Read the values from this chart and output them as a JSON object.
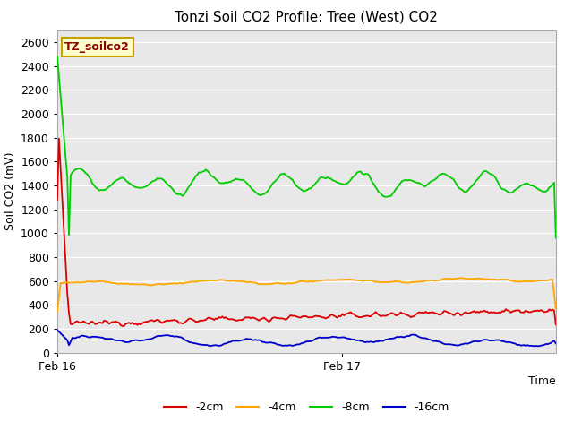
{
  "title": "Tonzi Soil CO2 Profile: Tree (West) CO2",
  "xlabel": "Time",
  "ylabel": "Soil CO2 (mV)",
  "ylim": [
    0,
    2700
  ],
  "yticks": [
    0,
    200,
    400,
    600,
    800,
    1000,
    1200,
    1400,
    1600,
    1800,
    2000,
    2200,
    2400,
    2600
  ],
  "watermark_text": "TZ_soilco2",
  "watermark_bg": "#ffffcc",
  "watermark_fg": "#8b0000",
  "watermark_border": "#c8a000",
  "background_color": "#e8e8e8",
  "plot_bg": "#e8e8e8",
  "series": {
    "-2cm": {
      "color": "#dd0000",
      "lw": 1.3
    },
    "-4cm": {
      "color": "#ffa500",
      "lw": 1.3
    },
    "-8cm": {
      "color": "#00cc00",
      "lw": 1.3
    },
    "-16cm": {
      "color": "#0000cc",
      "lw": 1.3
    }
  },
  "legend_labels": [
    "-2cm",
    "-4cm",
    "-8cm",
    "-16cm"
  ],
  "legend_colors": [
    "#dd0000",
    "#ffa500",
    "#00cc00",
    "#0000cc"
  ],
  "xmin": 0.0,
  "xmax": 1.75,
  "feb16_x": 0.0,
  "feb17_x": 1.0,
  "n_points": 300
}
